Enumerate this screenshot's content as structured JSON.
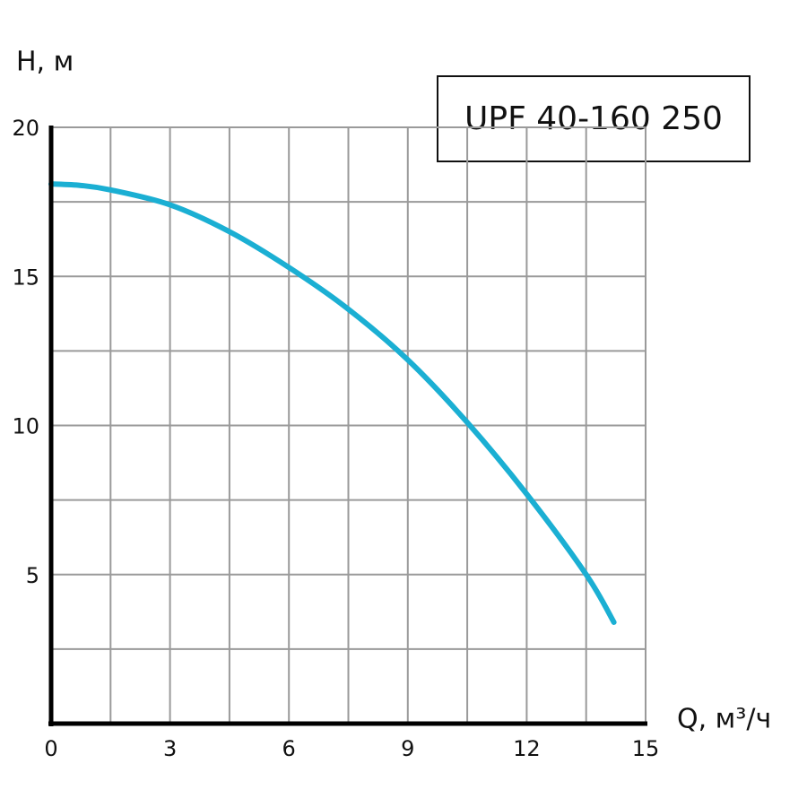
{
  "chart_data": {
    "type": "line",
    "title": "UPF 40-160 250",
    "y_label": "H, м",
    "x_label": "Q, м³/ч",
    "x": [
      0,
      0.75,
      1.5,
      3,
      4.5,
      6,
      7.5,
      9,
      10.5,
      12,
      13.5,
      14.2
    ],
    "series": [
      {
        "name": "UPF 40-160 250",
        "color": "#1bafd3",
        "values": [
          18.1,
          18.05,
          17.9,
          17.4,
          16.5,
          15.3,
          13.9,
          12.2,
          10.1,
          7.7,
          5.0,
          3.4
        ]
      }
    ],
    "xlim": [
      0,
      15
    ],
    "ylim": [
      0,
      20
    ],
    "xticks": [
      0,
      3,
      6,
      9,
      12,
      15
    ],
    "yticks": [
      5,
      10,
      15,
      20
    ],
    "xminorticks": [
      1.5,
      4.5,
      7.5,
      10.5,
      13.5
    ],
    "yminorticks": [
      2.5,
      7.5,
      12.5,
      17.5
    ],
    "grid": true
  }
}
